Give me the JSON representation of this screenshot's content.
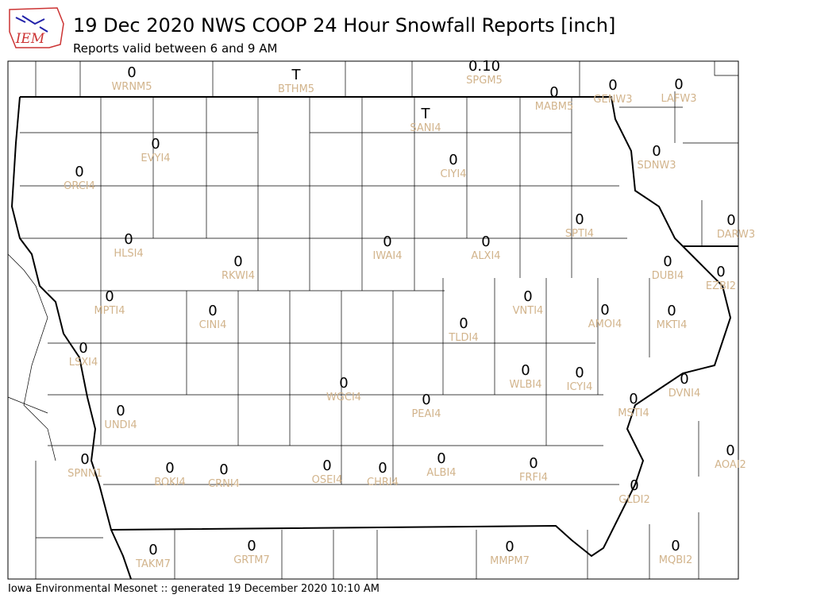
{
  "logo": "IEM",
  "title": "19 Dec 2020 NWS COOP 24 Hour Snowfall Reports [inch]",
  "subtitle": "Reports valid between 6 and 9 AM",
  "footer": "Iowa Environmental Mesonet :: generated 19 December 2020 10:10 AM",
  "stations": [
    {
      "id": "WRNM5",
      "value": "0"
    },
    {
      "id": "BTHM5",
      "value": "T"
    },
    {
      "id": "SPGM5",
      "value": "0.10"
    },
    {
      "id": "MABM5",
      "value": "0"
    },
    {
      "id": "GENW3",
      "value": "0"
    },
    {
      "id": "LAFW3",
      "value": "0"
    },
    {
      "id": "SANI4",
      "value": "T"
    },
    {
      "id": "EVYI4",
      "value": "0"
    },
    {
      "id": "CIYI4",
      "value": "0"
    },
    {
      "id": "ORCI4",
      "value": "0"
    },
    {
      "id": "SDNW3",
      "value": "0"
    },
    {
      "id": "SPTI4",
      "value": "0"
    },
    {
      "id": "DARW3",
      "value": "0"
    },
    {
      "id": "HLSI4",
      "value": "0"
    },
    {
      "id": "IWAI4",
      "value": "0"
    },
    {
      "id": "ALXI4",
      "value": "0"
    },
    {
      "id": "RKWI4",
      "value": "0"
    },
    {
      "id": "DUBI4",
      "value": "0"
    },
    {
      "id": "EZBI2",
      "value": "0"
    },
    {
      "id": "MPTI4",
      "value": "0"
    },
    {
      "id": "VNTI4",
      "value": "0"
    },
    {
      "id": "CINI4",
      "value": "0"
    },
    {
      "id": "AMOI4",
      "value": "0"
    },
    {
      "id": "MKTI4",
      "value": "0"
    },
    {
      "id": "TLDI4",
      "value": "0"
    },
    {
      "id": "LSXI4",
      "value": "0"
    },
    {
      "id": "WLBI4",
      "value": "0"
    },
    {
      "id": "ICYI4",
      "value": "0"
    },
    {
      "id": "DVNI4",
      "value": "0"
    },
    {
      "id": "WGCI4",
      "value": "0"
    },
    {
      "id": "PEAI4",
      "value": "0"
    },
    {
      "id": "MSTI4",
      "value": "0"
    },
    {
      "id": "UNDI4",
      "value": "0"
    },
    {
      "id": "AOAI2",
      "value": "0"
    },
    {
      "id": "SPNN1",
      "value": "0"
    },
    {
      "id": "ALBI4",
      "value": "0"
    },
    {
      "id": "FRFI4",
      "value": "0"
    },
    {
      "id": "BOKI4",
      "value": "0"
    },
    {
      "id": "CRNI4",
      "value": "0"
    },
    {
      "id": "OSEI4",
      "value": "0"
    },
    {
      "id": "CHRI4",
      "value": "0"
    },
    {
      "id": "GLDI2",
      "value": "0"
    },
    {
      "id": "TAKM7",
      "value": "0"
    },
    {
      "id": "GRTM7",
      "value": "0"
    },
    {
      "id": "MMPM7",
      "value": "0"
    },
    {
      "id": "MQBI2",
      "value": "0"
    }
  ]
}
